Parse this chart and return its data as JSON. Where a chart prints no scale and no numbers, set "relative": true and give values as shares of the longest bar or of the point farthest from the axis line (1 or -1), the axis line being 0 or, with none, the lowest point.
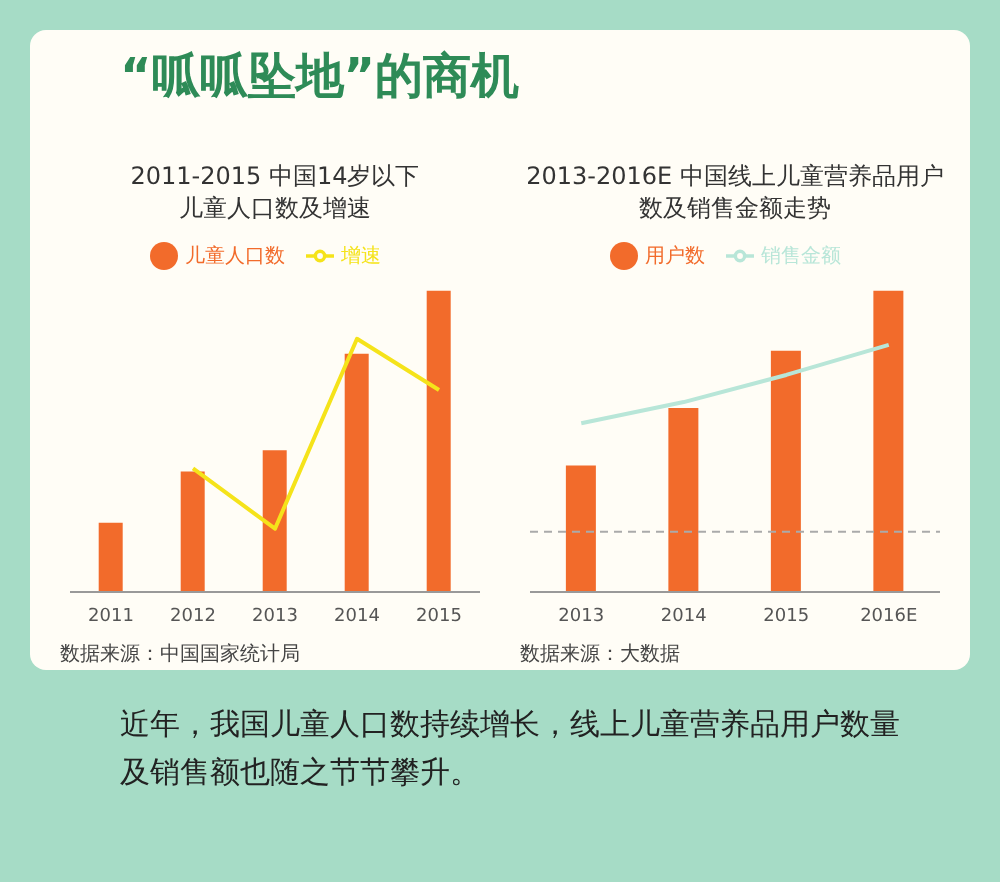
{
  "chart_data": [
    {
      "type": "bar",
      "title": "2011-2015 中国14岁以下儿童人口数及增速",
      "relative": true,
      "legend": "top",
      "marker": "none",
      "categories": [
        "2011",
        "2012",
        "2013",
        "2014",
        "2015"
      ],
      "series": [
        {
          "name": "儿童人口数",
          "color": "#f26b2b",
          "values": [
            0.23,
            0.4,
            0.47,
            0.79,
            1
          ]
        },
        {
          "name": "增速",
          "type": "line",
          "color": "#f5e31a",
          "values": [
            null,
            0.41,
            0.21,
            0.84,
            0.67
          ]
        }
      ],
      "annotations": [
        "数据来源：中国国家统计局",
        "“呱呱坠地”的商机"
      ]
    },
    {
      "type": "bar",
      "title": "2013-2016E 中国线上儿童营养品用户数及销售金额走势",
      "relative": true,
      "legend": "top",
      "marker": "none",
      "categories": [
        "2013",
        "2014",
        "2015",
        "2016E"
      ],
      "series": [
        {
          "name": "用户数",
          "color": "#f26b2b",
          "values": [
            0.42,
            0.61,
            0.8,
            1
          ]
        },
        {
          "name": "销售金额",
          "type": "line",
          "color": "#b8e6d8",
          "values": [
            0.56,
            0.63,
            0.72,
            0.82
          ]
        }
      ],
      "ref_lines": [
        {
          "axis": "y",
          "value": 0.2,
          "color": "#aaaaaa",
          "line_style": "dashed"
        }
      ],
      "annotations": [
        "数据来源：大数据",
        "近年，我国儿童人口数持续增长，线上儿童营养品用户数量及销售额也随之节节攀升。"
      ]
    }
  ]
}
